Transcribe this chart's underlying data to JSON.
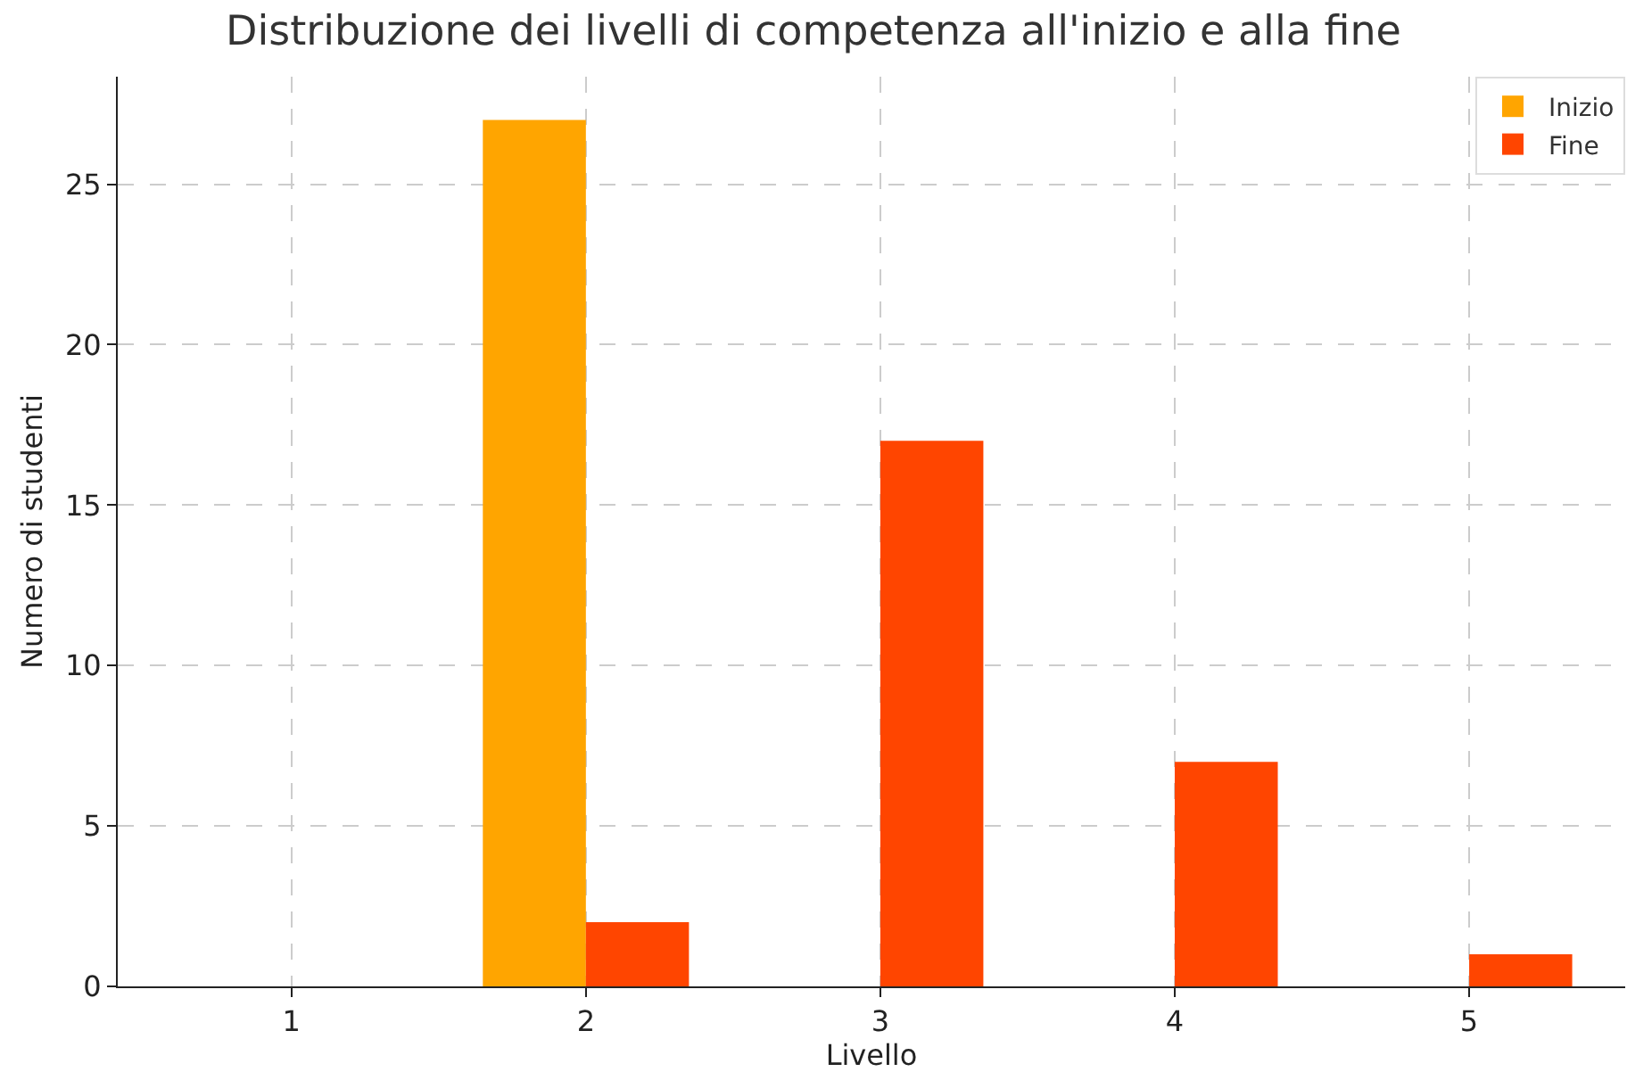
{
  "chart_data": {
    "type": "bar",
    "title": "Distribuzione dei livelli di competenza all'inizio e alla fine",
    "xlabel": "Livello",
    "ylabel": "Numero di studenti",
    "x": [
      1,
      2,
      3,
      4,
      5
    ],
    "series": [
      {
        "name": "Inizio",
        "color": "#ffa500",
        "values": [
          0,
          27,
          0,
          0,
          0
        ]
      },
      {
        "name": "Fine",
        "color": "#ff4500",
        "values": [
          0,
          2,
          17,
          7,
          1
        ]
      }
    ],
    "xlim": [
      0.41,
      5.53
    ],
    "xticks": [
      1,
      2,
      3,
      4,
      5
    ],
    "ylim": [
      0,
      28.35
    ],
    "yticks": [
      0,
      5,
      10,
      15,
      20,
      25
    ],
    "grid": true,
    "legend": "top right"
  }
}
